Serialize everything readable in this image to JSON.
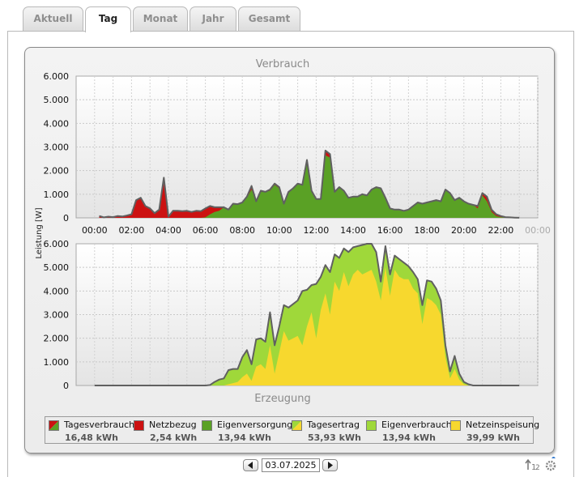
{
  "tabs": [
    {
      "label": "Aktuell",
      "active": false
    },
    {
      "label": "Tag",
      "active": true
    },
    {
      "label": "Monat",
      "active": false
    },
    {
      "label": "Jahr",
      "active": false
    },
    {
      "label": "Gesamt",
      "active": false
    }
  ],
  "chart_data": [
    {
      "type": "area",
      "title": "Verbrauch",
      "ylabel": "Leistung [W]",
      "ylim": [
        0,
        6000
      ],
      "yticks": [
        "6.000",
        "5.000",
        "4.000",
        "3.000",
        "2.000",
        "1.000",
        "0"
      ],
      "xticks": [
        "00:00",
        "02:00",
        "04:00",
        "06:00",
        "08:00",
        "10:00",
        "12:00",
        "14:00",
        "16:00",
        "18:00",
        "20:00",
        "22:00",
        "00:00"
      ],
      "xlim_hours": [
        -1,
        24
      ],
      "grid": true,
      "x_hours": [
        0.25,
        0.5,
        0.75,
        1.0,
        1.25,
        1.5,
        1.75,
        2.0,
        2.25,
        2.5,
        2.75,
        3.0,
        3.25,
        3.5,
        3.75,
        4.0,
        4.25,
        4.5,
        4.75,
        5.0,
        5.25,
        5.5,
        5.75,
        6.0,
        6.25,
        6.5,
        6.75,
        7.0,
        7.25,
        7.5,
        7.75,
        8.0,
        8.25,
        8.5,
        8.75,
        9.0,
        9.25,
        9.5,
        9.75,
        10.0,
        10.25,
        10.5,
        10.75,
        11.0,
        11.25,
        11.5,
        11.75,
        12.0,
        12.25,
        12.5,
        12.75,
        13.0,
        13.25,
        13.5,
        13.75,
        14.0,
        14.25,
        14.5,
        14.75,
        15.0,
        15.25,
        15.5,
        15.75,
        16.0,
        16.25,
        16.5,
        16.75,
        17.0,
        17.25,
        17.5,
        17.75,
        18.0,
        18.25,
        18.5,
        18.75,
        19.0,
        19.25,
        19.5,
        19.75,
        20.0,
        20.25,
        20.5,
        20.75,
        21.0,
        21.25,
        21.5,
        21.75,
        22.0,
        22.25,
        22.5,
        22.75,
        23.0
      ],
      "series": [
        {
          "name": "Tagesverbrauch",
          "color": "#606060",
          "values": [
            80,
            20,
            50,
            30,
            80,
            60,
            100,
            150,
            750,
            850,
            500,
            400,
            200,
            350,
            1700,
            50,
            300,
            300,
            280,
            300,
            250,
            300,
            280,
            400,
            500,
            450,
            450,
            450,
            350,
            600,
            580,
            650,
            900,
            1350,
            700,
            1150,
            1100,
            1200,
            1450,
            1300,
            600,
            1100,
            1250,
            1450,
            1400,
            2450,
            1150,
            800,
            800,
            2850,
            2700,
            1100,
            1300,
            1150,
            850,
            900,
            900,
            1000,
            950,
            1200,
            1300,
            1250,
            850,
            400,
            350,
            350,
            300,
            350,
            500,
            650,
            600,
            650,
            700,
            750,
            700,
            1200,
            1050,
            750,
            850,
            700,
            600,
            550,
            500,
            1050,
            900,
            350,
            150,
            80,
            30,
            20,
            10,
            5
          ]
        },
        {
          "name": "Eigenversorgung",
          "color": "#5aa125",
          "values": [
            0,
            0,
            0,
            0,
            0,
            0,
            0,
            0,
            0,
            0,
            0,
            0,
            0,
            0,
            0,
            0,
            0,
            0,
            0,
            0,
            0,
            0,
            0,
            20,
            150,
            250,
            300,
            450,
            350,
            600,
            580,
            650,
            850,
            1200,
            700,
            1100,
            1100,
            1150,
            1400,
            1250,
            600,
            1100,
            1250,
            1450,
            1400,
            2450,
            1150,
            800,
            800,
            2650,
            2550,
            1100,
            1300,
            1150,
            850,
            900,
            900,
            1000,
            950,
            1200,
            1300,
            1250,
            850,
            400,
            350,
            350,
            300,
            350,
            500,
            650,
            600,
            650,
            700,
            750,
            700,
            1200,
            1050,
            750,
            850,
            700,
            600,
            550,
            400,
            950,
            700,
            250,
            80,
            30,
            10,
            5,
            0,
            0
          ]
        }
      ]
    },
    {
      "type": "area",
      "title": "Erzeugung",
      "ylim": [
        0,
        6000
      ],
      "yticks": [
        "6.000",
        "5.000",
        "4.000",
        "3.000",
        "2.000",
        "1.000",
        "0"
      ],
      "xlim_hours": [
        -1,
        24
      ],
      "grid": true,
      "x_hours": [
        0.0,
        0.25,
        0.5,
        0.75,
        1.0,
        1.25,
        1.5,
        1.75,
        2.0,
        2.25,
        2.5,
        2.75,
        3.0,
        3.25,
        3.5,
        3.75,
        4.0,
        4.25,
        4.5,
        4.75,
        5.0,
        5.25,
        5.5,
        5.75,
        6.0,
        6.25,
        6.5,
        6.75,
        7.0,
        7.25,
        7.5,
        7.75,
        8.0,
        8.25,
        8.5,
        8.75,
        9.0,
        9.25,
        9.5,
        9.75,
        10.0,
        10.25,
        10.5,
        10.75,
        11.0,
        11.25,
        11.5,
        11.75,
        12.0,
        12.25,
        12.5,
        12.75,
        13.0,
        13.25,
        13.5,
        13.75,
        14.0,
        14.25,
        14.5,
        14.75,
        15.0,
        15.25,
        15.5,
        15.75,
        16.0,
        16.25,
        16.5,
        16.75,
        17.0,
        17.25,
        17.5,
        17.75,
        18.0,
        18.25,
        18.5,
        18.75,
        19.0,
        19.25,
        19.5,
        19.75,
        20.0,
        20.25,
        20.5,
        20.75,
        21.0,
        21.25,
        21.5,
        21.75,
        22.0,
        22.25,
        22.5,
        22.75,
        23.0
      ],
      "series": [
        {
          "name": "Tagesertrag",
          "color": "#606060",
          "values": [
            0,
            0,
            0,
            0,
            0,
            0,
            0,
            0,
            0,
            0,
            0,
            0,
            0,
            0,
            0,
            0,
            0,
            0,
            0,
            0,
            0,
            0,
            0,
            0,
            0,
            20,
            150,
            250,
            300,
            650,
            700,
            700,
            1200,
            1500,
            900,
            1950,
            2000,
            1850,
            3100,
            1700,
            2500,
            3400,
            3300,
            3450,
            3600,
            4000,
            4050,
            4250,
            4300,
            4600,
            5100,
            4800,
            5550,
            5400,
            5800,
            5650,
            5850,
            5900,
            5950,
            6000,
            6000,
            5650,
            4400,
            5900,
            4700,
            5500,
            5350,
            5200,
            5050,
            4800,
            4500,
            3400,
            4450,
            4400,
            4100,
            3600,
            1700,
            600,
            1250,
            500,
            150,
            50,
            0,
            0,
            0,
            0,
            0,
            0,
            0,
            0,
            0,
            0,
            0
          ]
        },
        {
          "name": "Netzeinspeisung",
          "color": "#f7d82e",
          "values": [
            0,
            0,
            0,
            0,
            0,
            0,
            0,
            0,
            0,
            0,
            0,
            0,
            0,
            0,
            0,
            0,
            0,
            0,
            0,
            0,
            0,
            0,
            0,
            0,
            0,
            0,
            0,
            0,
            0,
            50,
            100,
            150,
            350,
            500,
            200,
            800,
            900,
            700,
            1700,
            500,
            1400,
            2300,
            1900,
            2000,
            2100,
            1700,
            2500,
            3100,
            2000,
            3200,
            3900,
            3000,
            4400,
            4000,
            4800,
            4200,
            4700,
            4900,
            4700,
            4800,
            4900,
            4400,
            3600,
            5000,
            3800,
            4900,
            4600,
            4500,
            4500,
            4100,
            3900,
            2600,
            3700,
            3600,
            3400,
            3000,
            1200,
            300,
            700,
            250,
            50,
            0,
            0,
            0,
            0,
            0,
            0,
            0,
            0,
            0,
            0,
            0,
            0
          ]
        }
      ]
    }
  ],
  "legend": [
    {
      "label": "Tagesverbrauch",
      "value": "16,48 kWh",
      "swatch": "split-red-green",
      "color": "#cc1111"
    },
    {
      "label": "Netzbezug",
      "value": "2,54 kWh",
      "swatch": "solid",
      "color": "#cc1111"
    },
    {
      "label": "Eigenversorgung",
      "value": "13,94 kWh",
      "swatch": "solid",
      "color": "#5aa125"
    },
    {
      "label": "Tagesertrag",
      "value": "53,93 kWh",
      "swatch": "split-green-yellow",
      "color": "#f7d82e"
    },
    {
      "label": "Eigenverbrauch",
      "value": "13,94 kWh",
      "swatch": "solid",
      "color": "#9fd83a"
    },
    {
      "label": "Netzeinspeisung",
      "value": "39,99 kWh",
      "swatch": "solid",
      "color": "#f7d82e"
    }
  ],
  "colors": {
    "netzbezug": "#cc1111",
    "eigenversorgung": "#5aa125",
    "eigenverbrauch": "#9fd83a",
    "netzeinspeisung": "#f7d82e",
    "outline": "#606060"
  },
  "nav": {
    "date": "03.07.2025",
    "prev_icon": "arrow-left-icon",
    "next_icon": "arrow-right-icon"
  },
  "tools": {
    "sort_icon": "sort-icon",
    "settings_icon": "gear-icon"
  }
}
